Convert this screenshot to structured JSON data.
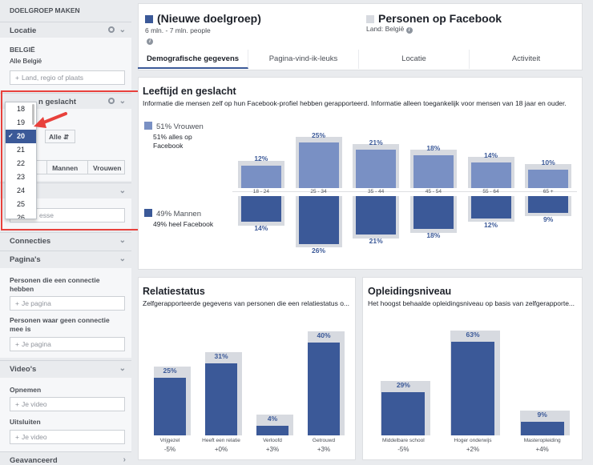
{
  "sidebar": {
    "title": "DOELGROEP MAKEN",
    "location": {
      "label": "Locatie",
      "country": "BELGIË",
      "all": "Alle België",
      "placeholder": "Land, regio of plaats"
    },
    "age_gender": {
      "label": "Leeftijd en geslacht",
      "age_to": "Alle",
      "genders": [
        "Alle",
        "Mannen",
        "Vrouwen"
      ]
    },
    "interests": {
      "label_partial": "es",
      "placeholder_partial": "esse"
    },
    "connections": {
      "label": "Connecties"
    },
    "pages": {
      "label": "Pagina's",
      "connected_label": "Personen die een connectie hebben",
      "connected_placeholder": "Je pagina",
      "not_connected_label": "Personen waar geen connectie mee is",
      "not_connected_placeholder": "Je pagina"
    },
    "videos": {
      "label": "Video's",
      "include_label": "Opnemen",
      "include_placeholder": "Je video",
      "exclude_label": "Uitsluiten",
      "exclude_placeholder": "Je video"
    },
    "advanced": {
      "label": "Geavanceerd"
    }
  },
  "age_dropdown": {
    "options": [
      "18",
      "19",
      "20",
      "21",
      "22",
      "23",
      "24",
      "25",
      "26"
    ],
    "selected": "20"
  },
  "header": {
    "audience_name": "(Nieuwe doelgroep)",
    "audience_size": "6 mln. - 7 mln. people",
    "comparison_name": "Personen op Facebook",
    "comparison_country": "Land: België",
    "audience_color": "#3b5998",
    "comparison_color": "#bec3c9"
  },
  "tabs": [
    "Demografische gegevens",
    "Pagina-vind-ik-leuks",
    "Locatie",
    "Activiteit"
  ],
  "age_gender_section": {
    "title": "Leeftijd en geslacht",
    "subtitle": "Informatie die mensen zelf op hun Facebook-profiel hebben gerapporteerd. Informatie alleen toegankelijk voor mensen van 18 jaar en ouder.",
    "women_pct": "51% Vrouwen",
    "women_sub": "51% alles op Facebook",
    "men_pct": "49% Mannen",
    "men_sub": "49% heel Facebook"
  },
  "relationship": {
    "title": "Relatiestatus",
    "subtitle": "Zelfgerapporteerde gegevens van personen die een relatiestatus o..."
  },
  "education": {
    "title": "Opleidingsniveau",
    "subtitle": "Het hoogst behaalde opleidingsniveau op basis van zelfgerapporte..."
  },
  "chart_data": [
    {
      "type": "bar",
      "title": "Leeftijd en geslacht",
      "categories": [
        "18 - 24",
        "25 - 34",
        "35 - 44",
        "45 - 54",
        "55 - 64",
        "65 +"
      ],
      "series": [
        {
          "name": "51% Vrouwen",
          "values": [
            12,
            25,
            21,
            18,
            14,
            10
          ],
          "labels": [
            "12%",
            "25%",
            "21%",
            "18%",
            "14%",
            "10%"
          ]
        },
        {
          "name": "49% Mannen",
          "values": [
            14,
            26,
            21,
            18,
            12,
            9
          ],
          "labels": [
            "14%",
            "26%",
            "21%",
            "18%",
            "12%",
            "9%"
          ]
        }
      ],
      "ylim": [
        0,
        30
      ]
    },
    {
      "type": "bar",
      "title": "Relatiestatus",
      "categories": [
        "Vrijgezel",
        "Heeft een relatie",
        "Verloofd",
        "Getrouwd"
      ],
      "values": [
        25,
        31,
        4,
        40
      ],
      "labels": [
        "25%",
        "31%",
        "4%",
        "40%"
      ],
      "comparison": [
        "-5%",
        "+0%",
        "+3%",
        "+3%"
      ],
      "ylim": [
        0,
        45
      ]
    },
    {
      "type": "bar",
      "title": "Opleidingsniveau",
      "categories": [
        "Middelbare school",
        "Hoger onderwijs",
        "Masteropleiding"
      ],
      "values": [
        29,
        63,
        9
      ],
      "labels": [
        "29%",
        "63%",
        "9%"
      ],
      "comparison": [
        "-5%",
        "+2%",
        "+4%"
      ],
      "ylim": [
        0,
        70
      ]
    }
  ]
}
